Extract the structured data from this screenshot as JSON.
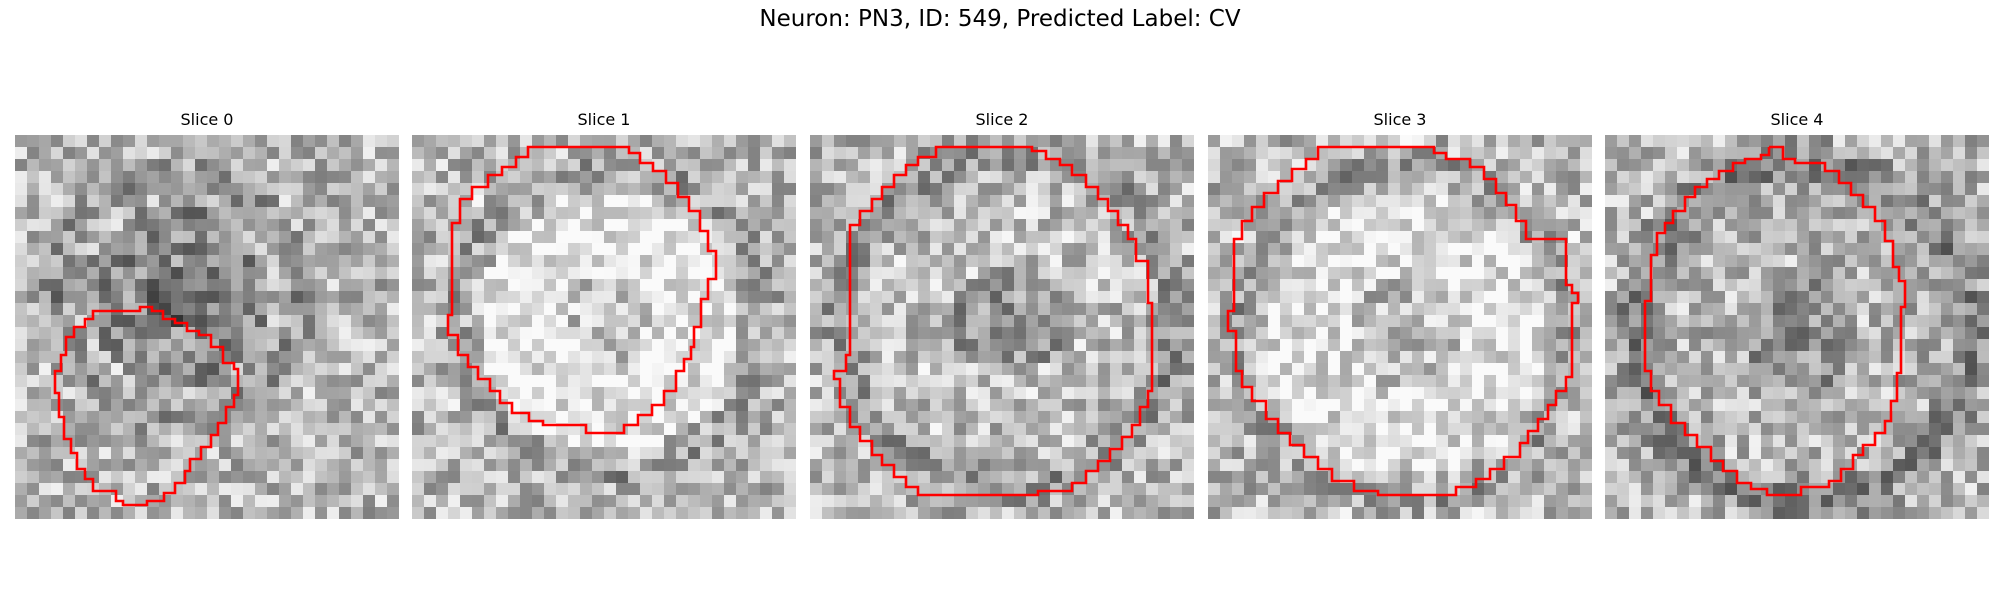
{
  "figure": {
    "title": "Neuron: PN3, ID: 549, Predicted Label: CV"
  },
  "panels": [
    {
      "title": "Slice 0",
      "contour_color": "#ff0000",
      "seed": 11
    },
    {
      "title": "Slice 1",
      "contour_color": "#ff0000",
      "seed": 23
    },
    {
      "title": "Slice 2",
      "contour_color": "#ff0000",
      "seed": 37
    },
    {
      "title": "Slice 3",
      "contour_color": "#ff0000",
      "seed": 41
    },
    {
      "title": "Slice 4",
      "contour_color": "#ff0000",
      "seed": 59
    }
  ],
  "colormap": "gray"
}
